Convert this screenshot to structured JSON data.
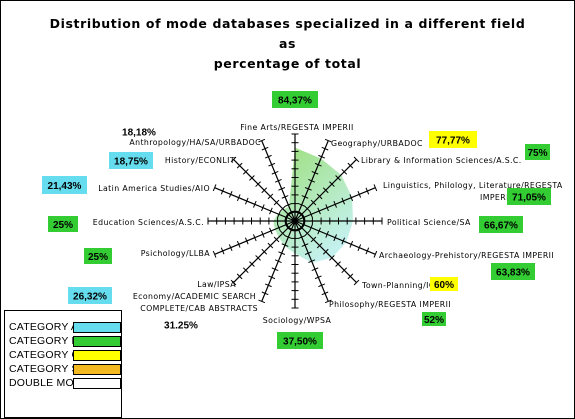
{
  "chart_data": {
    "type": "radar",
    "title": "Distribution of mode databases specialized in a different field as\npercentage of total",
    "axes": [
      {
        "label": "Fine Arts/REGESTA IMPERII",
        "value": 84.37,
        "value_label": "84,37%",
        "category": "CATEGORY B"
      },
      {
        "label": "Geography/URBADOC",
        "value": 77.77,
        "value_label": "77,77%",
        "category": "CATEGORY C"
      },
      {
        "label": "Library & Information Sciences/A.S.C.",
        "value": 75,
        "value_label": "75%",
        "category": "CATEGORY B"
      },
      {
        "label": "Linguistics, Philology, Literature/REGESTA IMPERII",
        "value": 71.05,
        "value_label": "71,05%",
        "category": "CATEGORY B"
      },
      {
        "label": "Political Science/SA",
        "value": 66.67,
        "value_label": "66,67%",
        "category": "CATEGORY B"
      },
      {
        "label": "Archaeology-Prehistory/REGESTA IMPERII",
        "value": 63.83,
        "value_label": "63,83%",
        "category": "CATEGORY B"
      },
      {
        "label": "Town-Planning/ICYT",
        "value": 60,
        "value_label": "60%",
        "category": "CATEGORY C"
      },
      {
        "label": "Philosophy/REGESTA IMPERII",
        "value": 52,
        "value_label": "52%",
        "category": "CATEGORY B"
      },
      {
        "label": "Sociology/WPSA",
        "value": 37.5,
        "value_label": "37,50%",
        "category": "CATEGORY B"
      },
      {
        "label": "Economy/ACADEMIC SEARCH COMPLETE/CAB ABSTRACTS",
        "value": 31.25,
        "value_label": "31.25%",
        "category": "DOUBLE MODE"
      },
      {
        "label": "Law/IPSA",
        "value": 26.32,
        "value_label": "26,32%",
        "category": "CATEGORY A"
      },
      {
        "label": "Psichology/LLBA",
        "value": 25,
        "value_label": "25%",
        "category": "CATEGORY B"
      },
      {
        "label": "Education Sciences/A.S.C.",
        "value": 25,
        "value_label": "25%",
        "category": "CATEGORY B"
      },
      {
        "label": "Latin America Studies/AIO",
        "value": 21.43,
        "value_label": "21,43%",
        "category": "CATEGORY A"
      },
      {
        "label": "History/ECONLIT",
        "value": 18.75,
        "value_label": "18,75%",
        "category": "CATEGORY A"
      },
      {
        "label": "Anthropology/HA/SA/URBADOC",
        "value": 18.18,
        "value_label": "18,18%",
        "category": "DOUBLE MODE"
      }
    ],
    "rlim": [
      0,
      100
    ],
    "rings": 10,
    "fill_gradient": [
      "#9ddf7a",
      "#c4f1ee"
    ],
    "legend": {
      "position": "bottom-left",
      "items": [
        {
          "label": "CATEGORY A",
          "color": "#66ddee"
        },
        {
          "label": "CATEGORY B",
          "color": "#33cc33"
        },
        {
          "label": "CATEGORY C",
          "color": "#ffff00"
        },
        {
          "label": "CATEGORY SD",
          "color": "#f4b820"
        },
        {
          "label": "DOUBLE  MODE",
          "color": "#ffffff"
        }
      ]
    }
  }
}
